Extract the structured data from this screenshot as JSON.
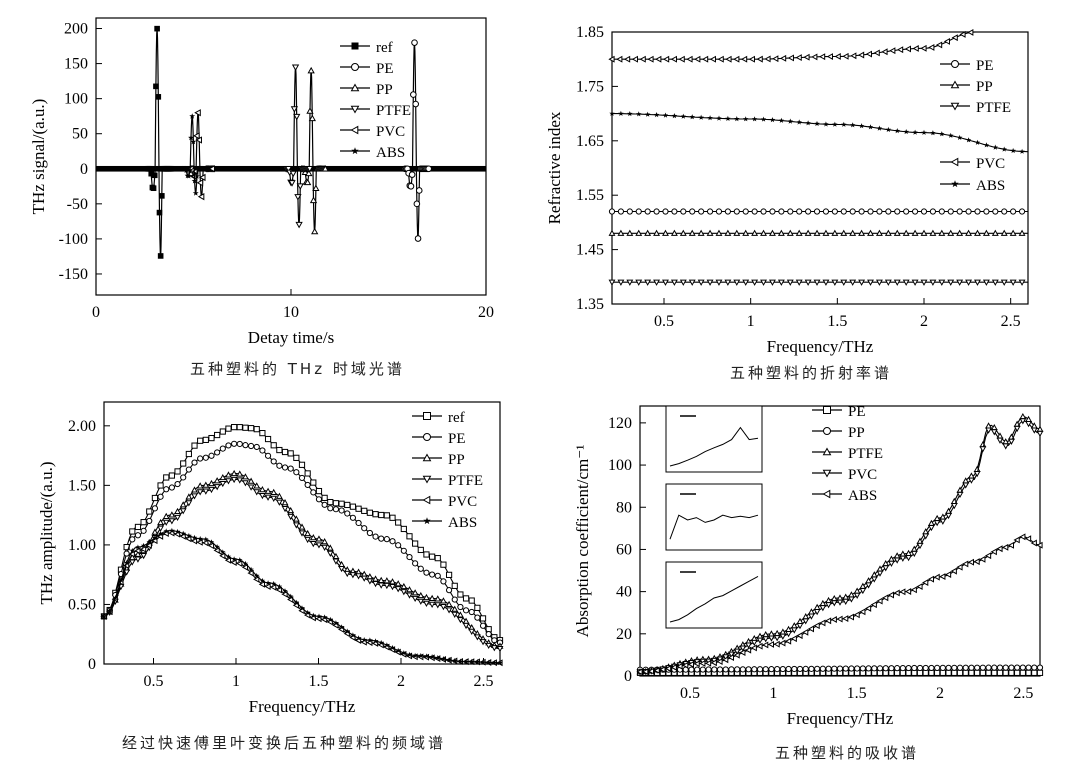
{
  "captions": {
    "time_domain": "五种塑料的 THz 时域光谱",
    "refractive": "五种塑料的折射率谱",
    "frequency_domain": "经过快速傅里叶变换后五种塑料的频域谱",
    "absorption": "五种塑料的吸收谱"
  },
  "chart_data": [
    {
      "id": "time_domain",
      "type": "line",
      "ylabel": "THz signal/(a.u.)",
      "xlabel": "Detay time/s",
      "xlim": [
        0,
        20
      ],
      "ylim": [
        -180,
        215
      ],
      "xticks": [
        0,
        10,
        20
      ],
      "yticks": [
        -150,
        -100,
        -50,
        0,
        50,
        100,
        150,
        200
      ],
      "grid": false,
      "legend_position": "top-right",
      "series": [
        {
          "name": "ref",
          "marker": "square-filled",
          "pulses": [
            {
              "x": 3.2,
              "peak": 200,
              "trough": -125
            }
          ]
        },
        {
          "name": "PE",
          "marker": "circle",
          "pulses": [
            {
              "x": 16.4,
              "peak": 180,
              "trough": -100
            }
          ]
        },
        {
          "name": "PP",
          "marker": "triangle-up",
          "pulses": [
            {
              "x": 11.1,
              "peak": 140,
              "trough": -90
            }
          ]
        },
        {
          "name": "PTFE",
          "marker": "triangle-down",
          "pulses": [
            {
              "x": 10.3,
              "peak": 145,
              "trough": -80
            }
          ]
        },
        {
          "name": "PVC",
          "marker": "triangle-left",
          "pulses": [
            {
              "x": 5.3,
              "peak": 80,
              "trough": -40
            }
          ]
        },
        {
          "name": "ABS",
          "marker": "star",
          "pulses": [
            {
              "x": 5.0,
              "peak": 75,
              "trough": -35
            }
          ]
        }
      ]
    },
    {
      "id": "refractive",
      "type": "line",
      "ylabel": "Refractive index",
      "xlabel": "Frequency/THz",
      "xlim": [
        0.2,
        2.6
      ],
      "ylim": [
        1.35,
        1.85
      ],
      "xticks": [
        0.5,
        1.0,
        1.5,
        2.0,
        2.5
      ],
      "yticks": [
        1.35,
        1.45,
        1.55,
        1.65,
        1.75,
        1.85
      ],
      "grid": false,
      "series": [
        {
          "name": "PE",
          "marker": "circle",
          "x": [
            0.2,
            2.6
          ],
          "y": [
            1.52,
            1.52
          ]
        },
        {
          "name": "PP",
          "marker": "triangle-up",
          "x": [
            0.2,
            2.6
          ],
          "y": [
            1.48,
            1.48
          ]
        },
        {
          "name": "PTFE",
          "marker": "triangle-down",
          "x": [
            0.2,
            2.6
          ],
          "y": [
            1.39,
            1.39
          ]
        },
        {
          "name": "PVC",
          "marker": "triangle-left",
          "x": [
            0.2,
            1.0,
            1.5,
            2.0,
            2.3
          ],
          "y": [
            1.8,
            1.8,
            1.805,
            1.82,
            1.85
          ]
        },
        {
          "name": "ABS",
          "marker": "star",
          "x": [
            0.2,
            1.0,
            1.5,
            2.0,
            2.6
          ],
          "y": [
            1.7,
            1.69,
            1.68,
            1.665,
            1.63
          ]
        }
      ],
      "legend_groups": [
        [
          "PE",
          "PP",
          "PTFE"
        ],
        [
          "PVC",
          "ABS"
        ]
      ]
    },
    {
      "id": "frequency_domain",
      "type": "line",
      "ylabel": "THz amplitude/(a.u.)",
      "xlabel": "Frequency/THz",
      "xlim": [
        0.2,
        2.6
      ],
      "ylim": [
        0,
        2.2
      ],
      "xticks": [
        0.5,
        1.0,
        1.5,
        2.0,
        2.5
      ],
      "yticks": [
        0,
        0.5,
        1.0,
        1.5,
        2.0
      ],
      "ytick_labels": [
        "0",
        "0.50",
        "1.00",
        "1.50",
        "2.00"
      ],
      "grid": false,
      "legend_position": "top-right",
      "series": [
        {
          "name": "ref",
          "marker": "square",
          "x": [
            0.2,
            0.4,
            0.6,
            0.8,
            1.0,
            1.1,
            1.3,
            1.6,
            1.9,
            2.2,
            2.4,
            2.6
          ],
          "y": [
            0.4,
            1.15,
            1.58,
            1.88,
            1.99,
            1.98,
            1.78,
            1.35,
            1.25,
            0.9,
            0.55,
            0.2
          ]
        },
        {
          "name": "PE",
          "marker": "circle",
          "x": [
            0.2,
            0.4,
            0.6,
            0.8,
            1.0,
            1.1,
            1.3,
            1.6,
            1.9,
            2.2,
            2.4,
            2.6
          ],
          "y": [
            0.4,
            1.08,
            1.48,
            1.73,
            1.85,
            1.83,
            1.65,
            1.3,
            1.05,
            0.75,
            0.45,
            0.18
          ]
        },
        {
          "name": "PP",
          "marker": "triangle-up",
          "x": [
            0.2,
            0.4,
            0.6,
            0.8,
            1.0,
            1.2,
            1.5,
            1.7,
            1.9,
            2.2,
            2.6
          ],
          "y": [
            0.4,
            0.92,
            1.25,
            1.5,
            1.6,
            1.45,
            1.05,
            0.78,
            0.7,
            0.55,
            0.15
          ]
        },
        {
          "name": "PTFE",
          "marker": "triangle-down",
          "x": [
            0.2,
            0.4,
            0.6,
            0.8,
            1.0,
            1.2,
            1.5,
            1.7,
            1.9,
            2.2,
            2.6
          ],
          "y": [
            0.4,
            0.88,
            1.2,
            1.45,
            1.55,
            1.4,
            1.0,
            0.75,
            0.66,
            0.5,
            0.13
          ]
        },
        {
          "name": "PVC",
          "marker": "triangle-left",
          "x": [
            0.2,
            0.4,
            0.6,
            0.8,
            1.0,
            1.2,
            1.5,
            1.8,
            2.1,
            2.4,
            2.6
          ],
          "y": [
            0.4,
            0.95,
            1.1,
            1.02,
            0.85,
            0.65,
            0.38,
            0.18,
            0.06,
            0.02,
            0.01
          ]
        },
        {
          "name": "ABS",
          "marker": "star",
          "x": [
            0.2,
            0.4,
            0.6,
            0.8,
            1.0,
            1.2,
            1.5,
            1.8,
            2.1,
            2.4,
            2.6
          ],
          "y": [
            0.4,
            0.98,
            1.12,
            1.05,
            0.88,
            0.68,
            0.4,
            0.2,
            0.07,
            0.02,
            0.01
          ]
        }
      ]
    },
    {
      "id": "absorption",
      "type": "line",
      "ylabel": "Absorption coefficient/cm⁻¹",
      "xlabel": "Frequency/THz",
      "xlim": [
        0.2,
        2.6
      ],
      "ylim": [
        0,
        128
      ],
      "xticks": [
        0.5,
        1.0,
        1.5,
        2.0,
        2.5
      ],
      "yticks": [
        0,
        20,
        40,
        60,
        80,
        100,
        120
      ],
      "grid": false,
      "legend_position": "top-right",
      "series": [
        {
          "name": "PE",
          "marker": "square",
          "x": [
            0.2,
            2.6
          ],
          "y": [
            1.5,
            1.5
          ]
        },
        {
          "name": "PP",
          "marker": "circle",
          "x": [
            0.2,
            2.6
          ],
          "y": [
            3,
            4
          ]
        },
        {
          "name": "PTFE",
          "marker": "triangle-up",
          "x": [
            0.2,
            0.6,
            1.0,
            1.4,
            1.8,
            2.0,
            2.2,
            2.3,
            2.4,
            2.5,
            2.6
          ],
          "y": [
            2,
            8,
            20,
            37,
            58,
            75,
            95,
            119,
            111,
            123,
            117
          ]
        },
        {
          "name": "PVC",
          "marker": "triangle-down",
          "x": [
            0.2,
            0.6,
            1.0,
            1.4,
            1.8,
            2.0,
            2.2,
            2.3,
            2.4,
            2.5,
            2.6
          ],
          "y": [
            2,
            7,
            18,
            35,
            56,
            73,
            93,
            117,
            109,
            121,
            115
          ]
        },
        {
          "name": "ABS",
          "marker": "triangle-left",
          "x": [
            0.2,
            0.6,
            1.0,
            1.4,
            1.8,
            2.0,
            2.2,
            2.4,
            2.5,
            2.6
          ],
          "y": [
            2,
            6,
            15,
            27,
            40,
            47,
            54,
            61,
            66,
            62
          ]
        }
      ],
      "insets": [
        {
          "name": "inset-1",
          "y": [
            0,
            0.05,
            0.12,
            0.2,
            0.3,
            0.38,
            0.45,
            0.55,
            0.8,
            0.55,
            0.58
          ]
        },
        {
          "name": "inset-2",
          "y": [
            0.1,
            0.6,
            0.5,
            0.55,
            0.45,
            0.5,
            0.6,
            0.55,
            0.58,
            0.55,
            0.6
          ]
        },
        {
          "name": "inset-3",
          "y": [
            0,
            0.05,
            0.15,
            0.28,
            0.38,
            0.5,
            0.55,
            0.65,
            0.75,
            0.85,
            0.95
          ]
        }
      ]
    }
  ]
}
